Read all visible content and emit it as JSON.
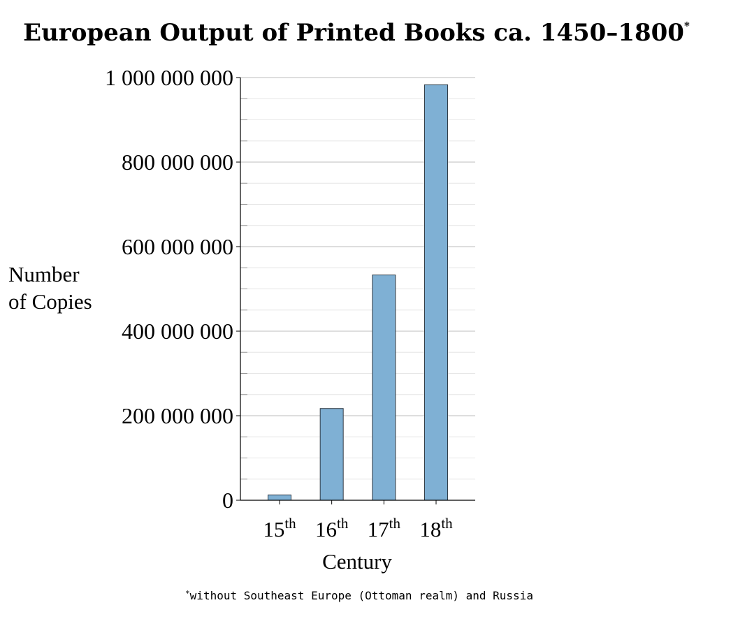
{
  "chart_data": {
    "type": "bar",
    "title": "European Output of Printed Books ca. 1450–1800",
    "title_marker": "*",
    "ylabel": [
      "Number",
      "of Copies"
    ],
    "xlabel": "Century",
    "categories": [
      {
        "base": "15",
        "sup": "th"
      },
      {
        "base": "16",
        "sup": "th"
      },
      {
        "base": "17",
        "sup": "th"
      },
      {
        "base": "18",
        "sup": "th"
      }
    ],
    "values": [
      12600000,
      217000000,
      533000000,
      983000000
    ],
    "ylim": [
      0,
      1000000000
    ],
    "yticks": [
      {
        "value": 0,
        "label": "0"
      },
      {
        "value": 200000000,
        "label": "200 000 000"
      },
      {
        "value": 400000000,
        "label": "400 000 000"
      },
      {
        "value": 600000000,
        "label": "600 000 000"
      },
      {
        "value": 800000000,
        "label": "800 000 000"
      },
      {
        "value": 1000000000,
        "label": "1 000 000 000"
      }
    ],
    "minor_grid_step": 50000000,
    "grid": true,
    "legend": "none",
    "bar_color": "#7fb0d4",
    "bar_edge_color": "#2f3a44",
    "footnote": {
      "marker": "*",
      "text": "without Southeast Europe (Ottoman realm) and Russia"
    }
  }
}
